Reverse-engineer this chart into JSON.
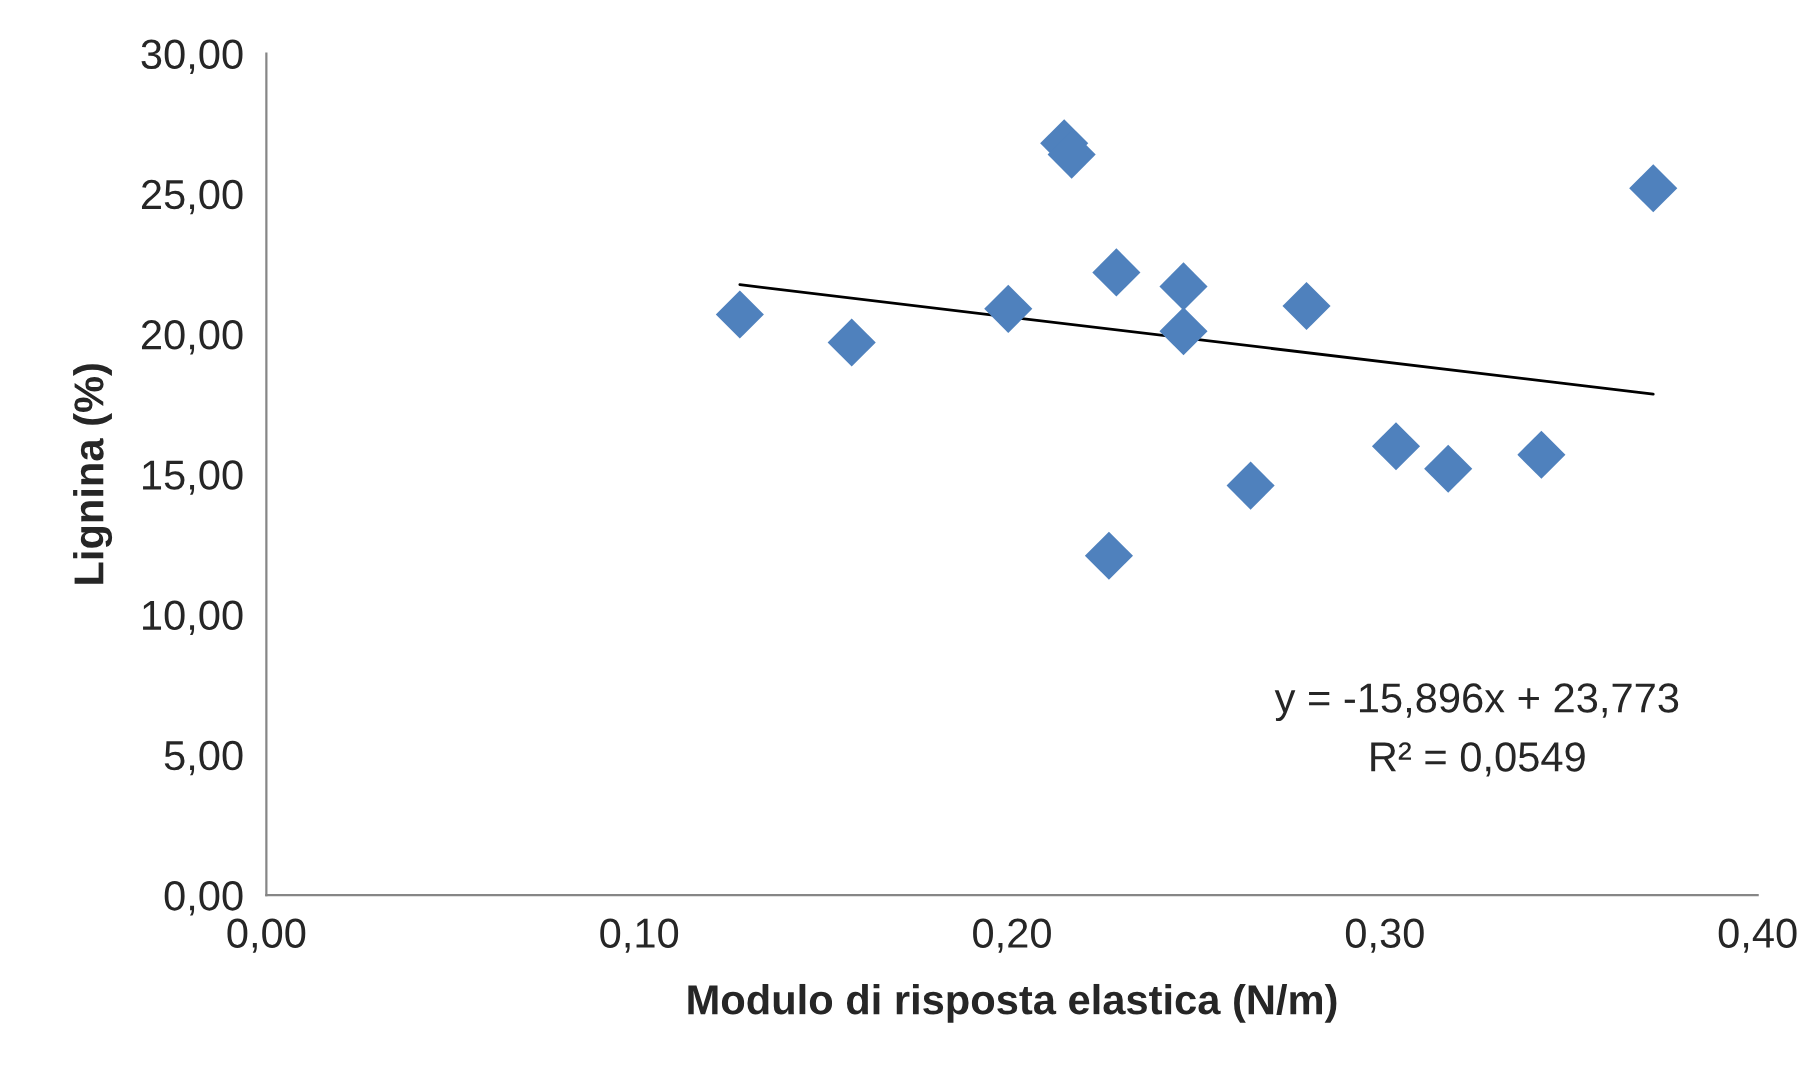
{
  "chart_data": {
    "type": "scatter",
    "xlabel": "Modulo di risposta elastica (N/m)",
    "ylabel": "Lignina (%)",
    "series": [
      {
        "color": "#4f81bd",
        "marker": "diamond",
        "x": [
          0.127,
          0.157,
          0.199,
          0.214,
          0.216,
          0.228,
          0.246,
          0.246,
          0.226,
          0.264,
          0.279,
          0.303,
          0.317,
          0.342,
          0.372
        ],
        "values": [
          20.7,
          19.7,
          20.9,
          26.8,
          26.4,
          22.2,
          21.7,
          20.1,
          12.1,
          14.6,
          21.0,
          16.0,
          15.2,
          15.7,
          25.2
        ]
      },
      {
        "type": "line",
        "color": "#000000",
        "marker": "none",
        "x": [
          0.127,
          0.372
        ],
        "values": [
          21.76,
          17.86
        ]
      }
    ],
    "annotations": [
      "y = -15,896x + 23,773",
      "R² = 0,0549"
    ],
    "xlim": [
      0,
      0.4
    ],
    "xticks": [
      {
        "value": 0,
        "label": "0,00"
      },
      {
        "value": 0.1,
        "label": "0,10"
      },
      {
        "value": 0.2,
        "label": "0,20"
      },
      {
        "value": 0.3,
        "label": "0,30"
      },
      {
        "value": 0.4,
        "label": "0,40"
      }
    ],
    "ylim": [
      0,
      30
    ],
    "yticks": [
      {
        "value": 0,
        "label": "0,00"
      },
      {
        "value": 5,
        "label": "5,00"
      },
      {
        "value": 10,
        "label": "10,00"
      },
      {
        "value": 15,
        "label": "15,00"
      },
      {
        "value": 20,
        "label": "20,00"
      },
      {
        "value": 25,
        "label": "25,00"
      },
      {
        "value": 30,
        "label": "30,00"
      }
    ],
    "grid": false,
    "legend": false
  }
}
